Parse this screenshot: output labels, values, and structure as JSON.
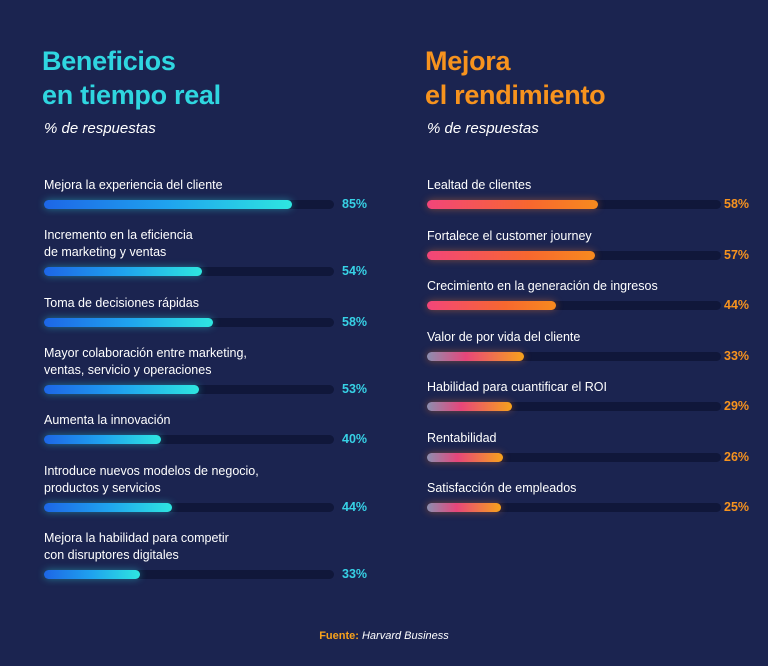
{
  "footer": {
    "label": "Fuente:",
    "source": "Harvard Business"
  },
  "colors": {
    "left_title": "#2fd6e0",
    "right_title": "#f7931e",
    "left_value": "#37d2e6",
    "right_value": "#f7931e",
    "track": "#10173a"
  },
  "chart_data": [
    {
      "type": "bar",
      "orientation": "horizontal",
      "title": "Beneficios\nen tiempo real",
      "subtitle": "% de respuestas",
      "unit": "%",
      "xlim": [
        0,
        100
      ],
      "categories": [
        "Mejora la experiencia del cliente",
        "Incremento en la eficiencia\nde marketing y ventas",
        "Toma de decisiones rápidas",
        "Mayor colaboración entre marketing,\nventas, servicio y operaciones",
        "Aumenta la innovación",
        "Introduce nuevos modelos de negocio,\nproductos y servicios",
        "Mejora la habilidad para competir\ncon disruptores digitales"
      ],
      "values": [
        85,
        54,
        58,
        53,
        40,
        44,
        33
      ],
      "labels": [
        "85%",
        "54%",
        "58%",
        "53%",
        "40%",
        "44%",
        "33%"
      ]
    },
    {
      "type": "bar",
      "orientation": "horizontal",
      "title": "Mejora\nel rendimiento",
      "subtitle": "% de respuestas",
      "unit": "%",
      "xlim": [
        0,
        100
      ],
      "categories": [
        "Lealtad de clientes",
        "Fortalece el customer journey",
        "Crecimiento en la generación de ingresos",
        "Valor de por vida del cliente",
        "Habilidad para cuantificar el ROI",
        "Rentabilidad",
        "Satisfacción de empleados"
      ],
      "values": [
        58,
        57,
        44,
        33,
        29,
        26,
        25
      ],
      "labels": [
        "58%",
        "57%",
        "44%",
        "33%",
        "29%",
        "26%",
        "25%"
      ]
    }
  ]
}
